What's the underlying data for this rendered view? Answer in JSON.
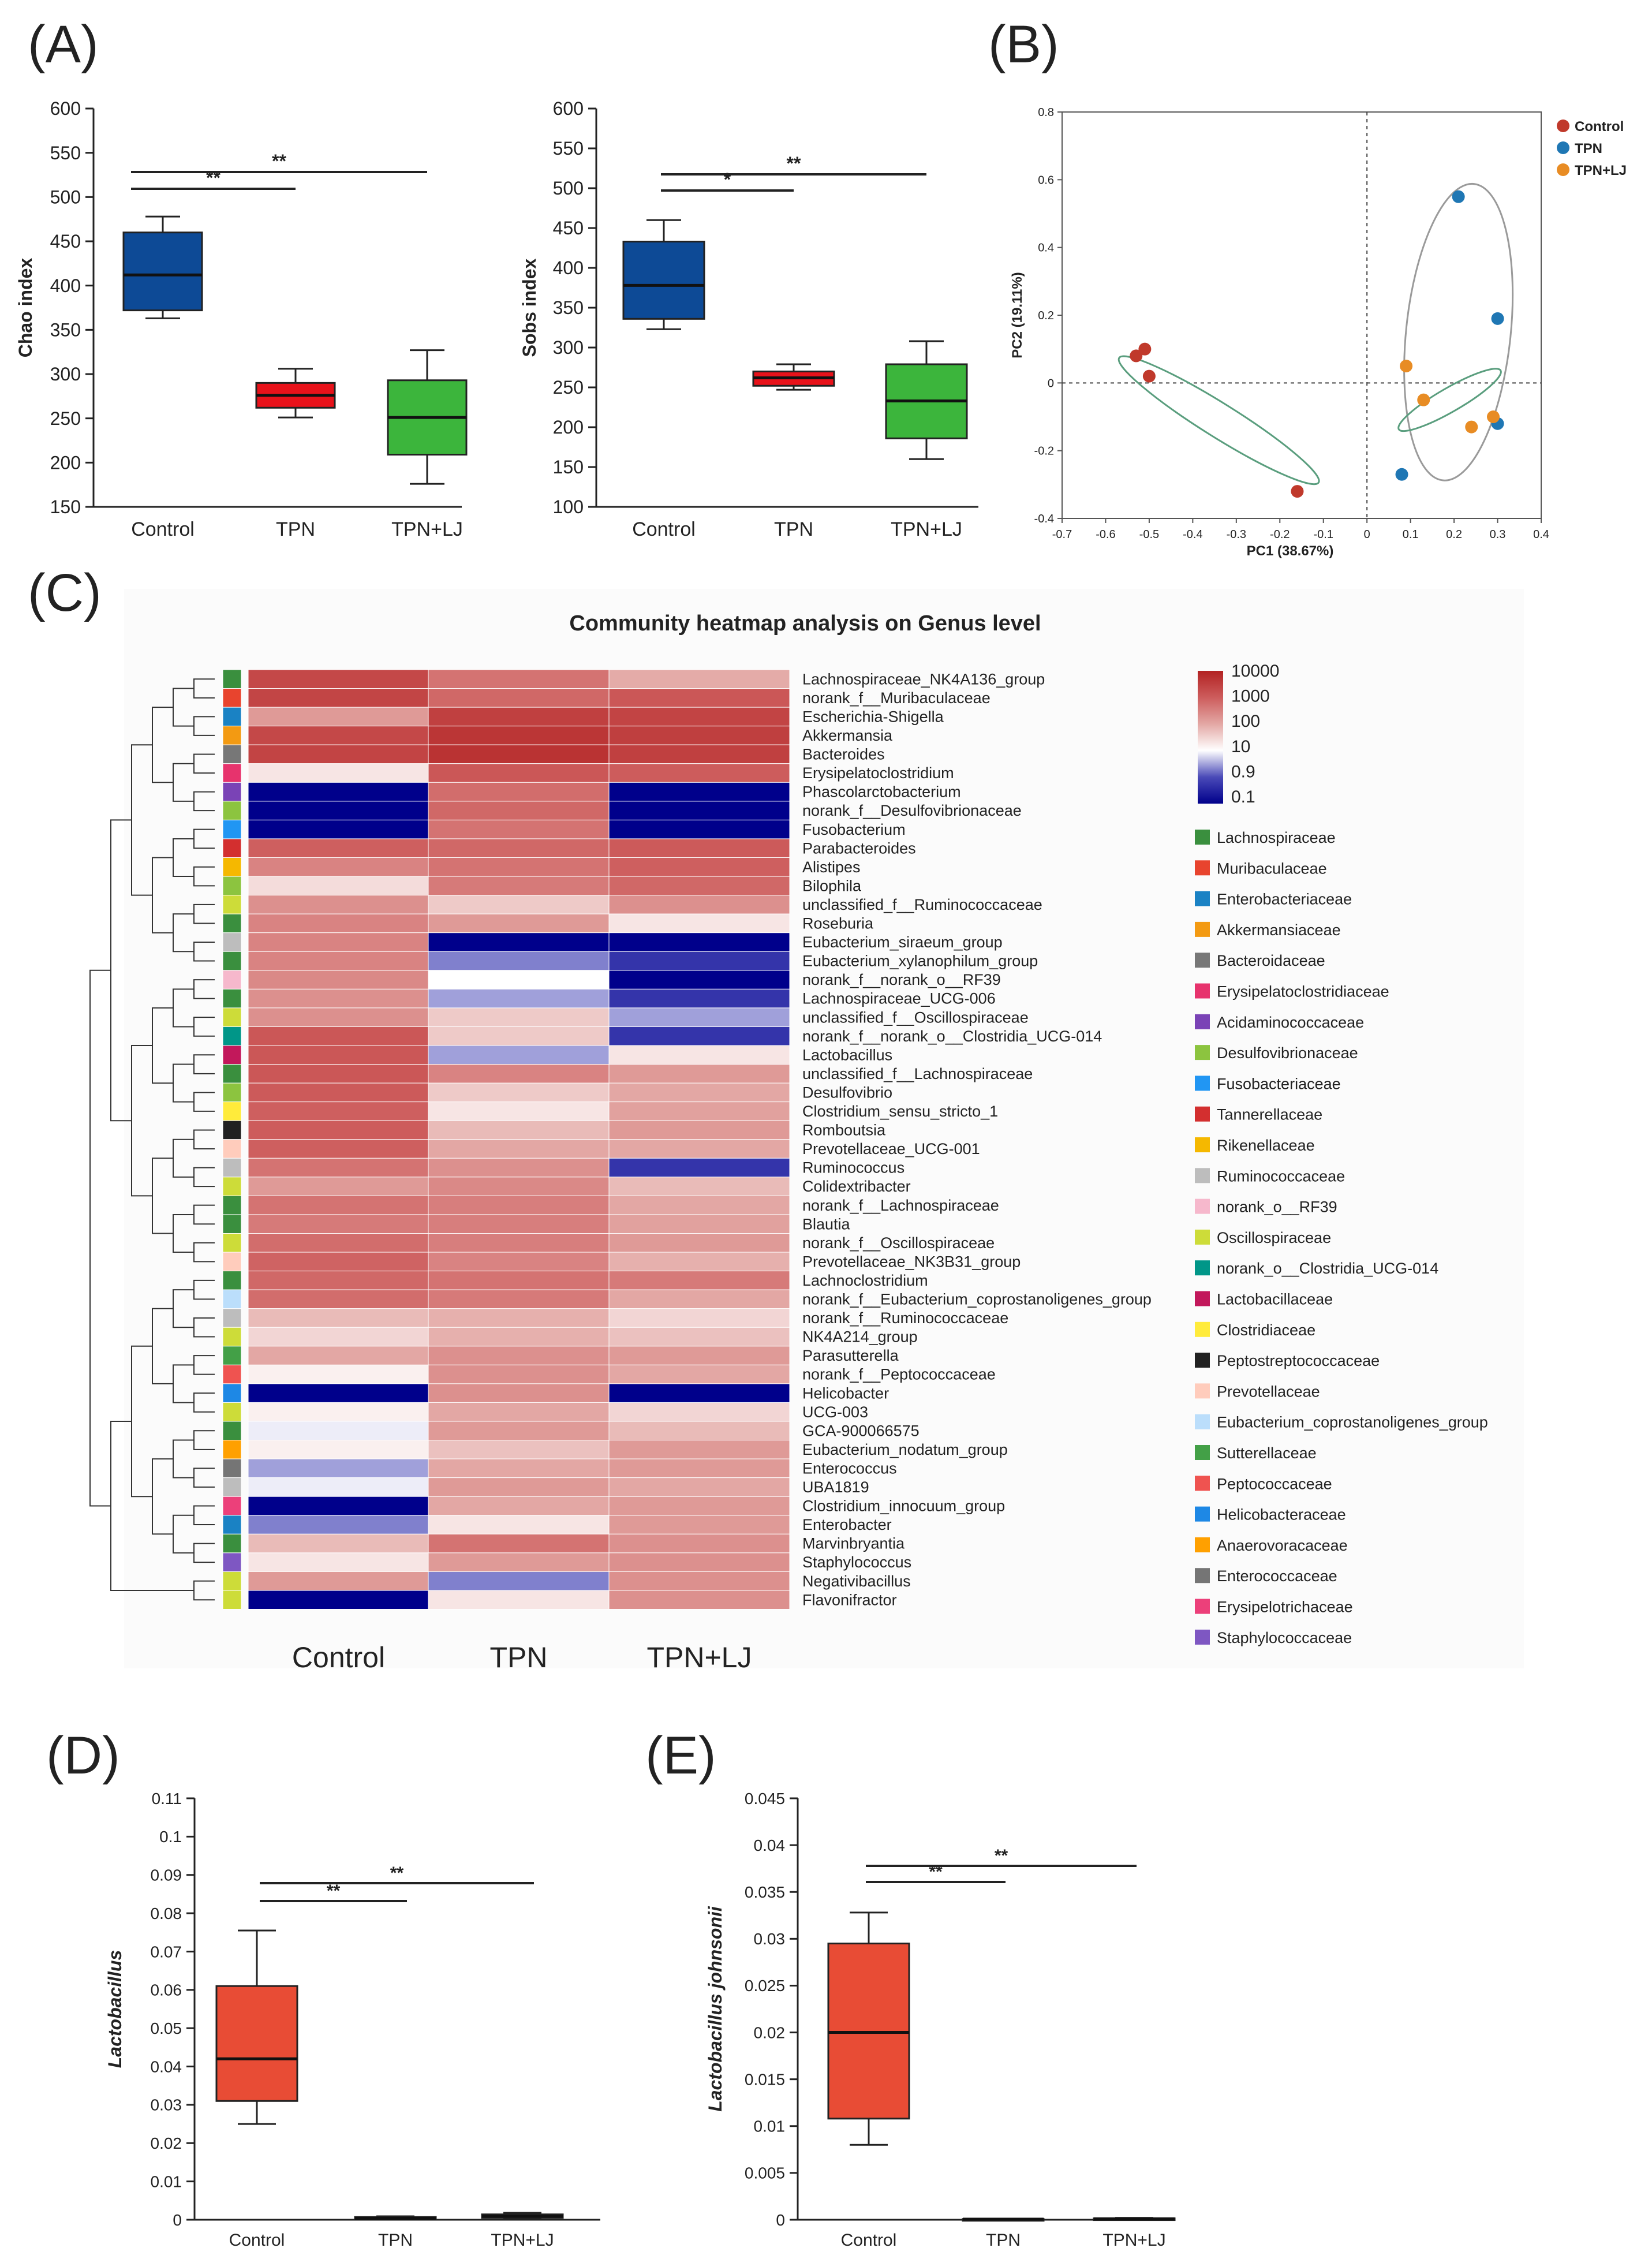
{
  "panel_labels": {
    "A": "(A)",
    "B": "(B)",
    "C": "(C)",
    "D": "(D)",
    "E": "(E)"
  },
  "chart_data": [
    {
      "id": "A1",
      "type": "box",
      "ylabel": "Chao index",
      "ylim": [
        150,
        600
      ],
      "yticks": [
        150,
        200,
        250,
        300,
        350,
        400,
        450,
        500,
        550,
        600
      ],
      "categories": [
        "Control",
        "TPN",
        "TPN+LJ"
      ],
      "boxes": [
        {
          "name": "Control",
          "min": 363,
          "q1": 372,
          "median": 412,
          "q3": 460,
          "max": 478,
          "color": "#0d4a96"
        },
        {
          "name": "TPN",
          "min": 251,
          "q1": 262,
          "median": 276,
          "q3": 290,
          "max": 306,
          "color": "#e8121a"
        },
        {
          "name": "TPN+LJ",
          "min": 176,
          "q1": 209,
          "median": 251,
          "q3": 293,
          "max": 327,
          "color": "#3cb53c"
        }
      ],
      "significance": [
        {
          "from": "Control",
          "to": "TPN",
          "label": "**"
        },
        {
          "from": "Control",
          "to": "TPN+LJ",
          "label": "**"
        }
      ]
    },
    {
      "id": "A2",
      "type": "box",
      "ylabel": "Sobs index",
      "ylim": [
        100,
        600
      ],
      "yticks": [
        100,
        150,
        200,
        250,
        300,
        350,
        400,
        450,
        500,
        550,
        600
      ],
      "categories": [
        "Control",
        "TPN",
        "TPN+LJ"
      ],
      "boxes": [
        {
          "name": "Control",
          "min": 323,
          "q1": 336,
          "median": 378,
          "q3": 433,
          "max": 460,
          "color": "#0d4a96"
        },
        {
          "name": "TPN",
          "min": 247,
          "q1": 252,
          "median": 262,
          "q3": 270,
          "max": 279,
          "color": "#e8121a"
        },
        {
          "name": "TPN+LJ",
          "min": 160,
          "q1": 186,
          "median": 233,
          "q3": 279,
          "max": 308,
          "color": "#3cb53c"
        }
      ],
      "significance": [
        {
          "from": "Control",
          "to": "TPN",
          "label": "*"
        },
        {
          "from": "Control",
          "to": "TPN+LJ",
          "label": "**"
        }
      ]
    },
    {
      "id": "B",
      "type": "scatter",
      "xlabel": "PC1 (38.67%)",
      "ylabel": "PC2 (19.11%)",
      "xlim": [
        -0.7,
        0.4
      ],
      "ylim": [
        -0.4,
        0.8
      ],
      "xticks": [
        -0.7,
        -0.6,
        -0.5,
        -0.4,
        -0.3,
        -0.2,
        -0.1,
        0,
        0.1,
        0.2,
        0.3,
        0.4
      ],
      "yticks": [
        -0.4,
        -0.2,
        0,
        0.2,
        0.4,
        0.6,
        0.8
      ],
      "legend": [
        "Control",
        "TPN",
        "TPN+LJ"
      ],
      "series": [
        {
          "name": "Control",
          "color": "#c0392b",
          "points": [
            [
              -0.51,
              0.1
            ],
            [
              -0.53,
              0.08
            ],
            [
              -0.5,
              0.02
            ],
            [
              -0.16,
              -0.32
            ]
          ]
        },
        {
          "name": "TPN",
          "color": "#1f77b4",
          "points": [
            [
              0.21,
              0.55
            ],
            [
              0.3,
              0.19
            ],
            [
              0.3,
              -0.12
            ],
            [
              0.08,
              -0.27
            ]
          ]
        },
        {
          "name": "TPN+LJ",
          "color": "#e88c24",
          "points": [
            [
              0.09,
              0.05
            ],
            [
              0.13,
              -0.05
            ],
            [
              0.24,
              -0.13
            ],
            [
              0.29,
              -0.1
            ]
          ]
        }
      ],
      "ellipses": [
        {
          "group": "Control",
          "color": "#5a9e7e",
          "cx": -0.34,
          "cy": -0.11,
          "rx": 0.27,
          "ry": 0.05,
          "angle": 32
        },
        {
          "group": "TPN",
          "color": "#9a9a9a",
          "cx": 0.21,
          "cy": 0.15,
          "rx": 0.12,
          "ry": 0.44,
          "angle": 6
        },
        {
          "group": "TPN+LJ",
          "color": "#5a9e7e",
          "cx": 0.19,
          "cy": -0.05,
          "rx": 0.135,
          "ry": 0.035,
          "angle": 150
        }
      ]
    },
    {
      "id": "C",
      "type": "heatmap",
      "title": "Community heatmap analysis on Genus level",
      "columns": [
        "Control",
        "TPN",
        "TPN+LJ"
      ],
      "colorbar_labels": [
        "10000",
        "1000",
        "100",
        "10",
        "0.9",
        "0.1"
      ],
      "rows": [
        {
          "genus": "Lachnospiraceae_NK4A136_group",
          "family": "Lachnospiraceae",
          "values": [
            2200,
            500,
            90
          ]
        },
        {
          "genus": "norank_f__Muribaculaceae",
          "family": "Muribaculaceae",
          "values": [
            2500,
            700,
            1200
          ]
        },
        {
          "genus": "Escherichia-Shigella",
          "family": "Enterobacteriaceae",
          "values": [
            150,
            3000,
            2600
          ]
        },
        {
          "genus": "Akkermansia",
          "family": "Akkermansiaceae",
          "values": [
            2200,
            4500,
            3200
          ]
        },
        {
          "genus": "Bacteroides",
          "family": "Bacteroidaceae",
          "values": [
            2600,
            5000,
            3000
          ]
        },
        {
          "genus": "Erysipelatoclostridium",
          "family": "Erysipelatoclostridiaceae",
          "values": [
            20,
            1200,
            1000
          ]
        },
        {
          "genus": "Phascolarctobacterium",
          "family": "Acidaminococcaceae",
          "values": [
            0.1,
            600,
            0.1
          ]
        },
        {
          "genus": "norank_f__Desulfovibrionaceae",
          "family": "Desulfovibrionaceae",
          "values": [
            0.1,
            700,
            0.1
          ]
        },
        {
          "genus": "Fusobacterium",
          "family": "Fusobacteriaceae",
          "values": [
            0.1,
            500,
            0.1
          ]
        },
        {
          "genus": "Parabacteroides",
          "family": "Tannerellaceae",
          "values": [
            900,
            700,
            1100
          ]
        },
        {
          "genus": "Alistipes",
          "family": "Rikenellaceae",
          "values": [
            300,
            500,
            900
          ]
        },
        {
          "genus": "Bilophila",
          "family": "Desulfovibrionaceae",
          "values": [
            25,
            400,
            700
          ]
        },
        {
          "genus": "unclassified_f__Ruminococcaceae",
          "family": "Oscillospiraceae",
          "values": [
            200,
            40,
            200
          ]
        },
        {
          "genus": "Roseburia",
          "family": "Lachnospiraceae",
          "values": [
            300,
            150,
            20
          ]
        },
        {
          "genus": "Eubacterium_siraeum_group",
          "family": "Ruminococcaceae",
          "values": [
            300,
            0.1,
            0.1
          ]
        },
        {
          "genus": "Eubacterium_xylanophilum_group",
          "family": "Lachnospiraceae",
          "values": [
            300,
            2,
            0.5
          ]
        },
        {
          "genus": "norank_f__norank_o__RF39",
          "family": "norank_o__RF39",
          "values": [
            250,
            10,
            0.1
          ]
        },
        {
          "genus": "Lachnospiraceae_UCG-006",
          "family": "Lachnospiraceae",
          "values": [
            200,
            3,
            0.5
          ]
        },
        {
          "genus": "unclassified_f__Oscillospiraceae",
          "family": "Oscillospiraceae",
          "values": [
            200,
            40,
            3
          ]
        },
        {
          "genus": "norank_f__norank_o__Clostridia_UCG-014",
          "family": "norank_o__Clostridia_UCG-014",
          "values": [
            1200,
            40,
            0.5
          ]
        },
        {
          "genus": "Lactobacillus",
          "family": "Lactobacillaceae",
          "values": [
            1200,
            3,
            20
          ]
        },
        {
          "genus": "unclassified_f__Lachnospiraceae",
          "family": "Lachnospiraceae",
          "values": [
            1200,
            300,
            150
          ]
        },
        {
          "genus": "Desulfovibrio",
          "family": "Desulfovibrionaceae",
          "values": [
            1100,
            40,
            100
          ]
        },
        {
          "genus": "Clostridium_sensu_stricto_1",
          "family": "Clostridiaceae",
          "values": [
            900,
            20,
            120
          ]
        },
        {
          "genus": "Romboutsia",
          "family": "Peptostreptococcaceae",
          "values": [
            1000,
            60,
            150
          ]
        },
        {
          "genus": "Prevotellaceae_UCG-001",
          "family": "Prevotellaceae",
          "values": [
            900,
            100,
            100
          ]
        },
        {
          "genus": "Ruminococcus",
          "family": "Ruminococcaceae",
          "values": [
            500,
            200,
            0.5
          ]
        },
        {
          "genus": "Colidextribacter",
          "family": "Oscillospiraceae",
          "values": [
            150,
            250,
            60
          ]
        },
        {
          "genus": "norank_f__Lachnospiraceae",
          "family": "Lachnospiraceae",
          "values": [
            500,
            350,
            100
          ]
        },
        {
          "genus": "Blautia",
          "family": "Lachnospiraceae",
          "values": [
            400,
            350,
            120
          ]
        },
        {
          "genus": "norank_f__Oscillospiraceae",
          "family": "Oscillospiraceae",
          "values": [
            600,
            350,
            150
          ]
        },
        {
          "genus": "Prevotellaceae_NK3B31_group",
          "family": "Prevotellaceae",
          "values": [
            800,
            300,
            80
          ]
        },
        {
          "genus": "Lachnoclostridium",
          "family": "Lachnospiraceae",
          "values": [
            700,
            500,
            400
          ]
        },
        {
          "genus": "norank_f__Eubacterium_coprostanoligenes_group",
          "family": "Eubacterium_coprostanoligenes_group",
          "values": [
            600,
            400,
            100
          ]
        },
        {
          "genus": "norank_f__Ruminococcaceae",
          "family": "Ruminococcaceae",
          "values": [
            60,
            80,
            30
          ]
        },
        {
          "genus": "NK4A214_group",
          "family": "Oscillospiraceae",
          "values": [
            30,
            80,
            50
          ]
        },
        {
          "genus": "Parasutterella",
          "family": "Sutterellaceae",
          "values": [
            100,
            200,
            150
          ]
        },
        {
          "genus": "norank_f__Peptococcaceae",
          "family": "Peptococcaceae",
          "values": [
            15,
            200,
            100
          ]
        },
        {
          "genus": "Helicobacter",
          "family": "Helicobacteraceae",
          "values": [
            0.1,
            200,
            0.1
          ]
        },
        {
          "genus": "UCG-003",
          "family": "Oscillospiraceae",
          "values": [
            15,
            100,
            30
          ]
        },
        {
          "genus": "GCA-900066575",
          "family": "Lachnospiraceae",
          "values": [
            8,
            150,
            60
          ]
        },
        {
          "genus": "Eubacterium_nodatum_group",
          "family": "Anaerovoracaceae",
          "values": [
            15,
            50,
            150
          ]
        },
        {
          "genus": "Enterococcus",
          "family": "Enterococcaceae",
          "values": [
            3,
            100,
            150
          ]
        },
        {
          "genus": "UBA1819",
          "family": "Ruminococcaceae",
          "values": [
            8,
            150,
            100
          ]
        },
        {
          "genus": "Clostridium_innocuum_group",
          "family": "Erysipelotrichaceae",
          "values": [
            0.1,
            100,
            150
          ]
        },
        {
          "genus": "Enterobacter",
          "family": "Enterobacteriaceae",
          "values": [
            2,
            20,
            150
          ]
        },
        {
          "genus": "Marvinbryantia",
          "family": "Lachnospiraceae",
          "values": [
            60,
            500,
            200
          ]
        },
        {
          "genus": "Staphylococcus",
          "family": "Staphylococcaceae",
          "values": [
            20,
            150,
            200
          ]
        },
        {
          "genus": "Negativibacillus",
          "family": "Oscillospiraceae",
          "values": [
            150,
            2,
            200
          ]
        },
        {
          "genus": "Flavonifractor",
          "family": "Oscillospiraceae",
          "values": [
            0.1,
            20,
            200
          ]
        }
      ],
      "families": [
        {
          "name": "Lachnospiraceae",
          "color": "#3a8f3e"
        },
        {
          "name": "Muribaculaceae",
          "color": "#e8442e"
        },
        {
          "name": "Enterobacteriaceae",
          "color": "#1a82c4"
        },
        {
          "name": "Akkermansiaceae",
          "color": "#f39a12"
        },
        {
          "name": "Bacteroidaceae",
          "color": "#777777"
        },
        {
          "name": "Erysipelatoclostridiaceae",
          "color": "#e7336d"
        },
        {
          "name": "Acidaminococcaceae",
          "color": "#7a43b6"
        },
        {
          "name": "Desulfovibrionaceae",
          "color": "#8cc43f"
        },
        {
          "name": "Fusobacteriaceae",
          "color": "#2196f3"
        },
        {
          "name": "Tannerellaceae",
          "color": "#d32f2f"
        },
        {
          "name": "Rikenellaceae",
          "color": "#f5b800"
        },
        {
          "name": "Ruminococcaceae",
          "color": "#bdbdbd"
        },
        {
          "name": "norank_o__RF39",
          "color": "#f6b8cc"
        },
        {
          "name": "Oscillospiraceae",
          "color": "#cddc39"
        },
        {
          "name": "norank_o__Clostridia_UCG-014",
          "color": "#009688"
        },
        {
          "name": "Lactobacillaceae",
          "color": "#c2185b"
        },
        {
          "name": "Clostridiaceae",
          "color": "#ffeb3b"
        },
        {
          "name": "Peptostreptococcaceae",
          "color": "#212121"
        },
        {
          "name": "Prevotellaceae",
          "color": "#ffccbc"
        },
        {
          "name": "Eubacterium_coprostanoligenes_group",
          "color": "#bbdefb"
        },
        {
          "name": "Sutterellaceae",
          "color": "#43a047"
        },
        {
          "name": "Peptococcaceae",
          "color": "#ef5350"
        },
        {
          "name": "Helicobacteraceae",
          "color": "#1e88e5"
        },
        {
          "name": "Anaerovoracaceae",
          "color": "#ffa000"
        },
        {
          "name": "Enterococcaceae",
          "color": "#757575"
        },
        {
          "name": "Erysipelotrichaceae",
          "color": "#ec407a"
        },
        {
          "name": "Staphylococcaceae",
          "color": "#7e57c2"
        }
      ]
    },
    {
      "id": "D",
      "type": "box",
      "ylabel": "Lactobacillus",
      "ylim": [
        0,
        0.11
      ],
      "yticks": [
        0,
        0.01,
        0.02,
        0.03,
        0.04,
        0.05,
        0.06,
        0.07,
        0.08,
        0.09,
        0.1,
        0.11
      ],
      "categories": [
        "Control",
        "TPN",
        "TPN+LJ"
      ],
      "boxes": [
        {
          "name": "Control",
          "min": 0.025,
          "q1": 0.031,
          "median": 0.042,
          "q3": 0.061,
          "max": 0.0755,
          "color": "#e84c35"
        },
        {
          "name": "TPN",
          "min": 0.0001,
          "q1": 0.0002,
          "median": 0.0004,
          "q3": 0.0007,
          "max": 0.0009,
          "color": "#3aa655"
        },
        {
          "name": "TPN+LJ",
          "min": 0.0002,
          "q1": 0.0005,
          "median": 0.0009,
          "q3": 0.0014,
          "max": 0.0018,
          "color": "#3aa655"
        }
      ],
      "significance": [
        {
          "from": "Control",
          "to": "TPN",
          "label": "**"
        },
        {
          "from": "Control",
          "to": "TPN+LJ",
          "label": "**"
        }
      ]
    },
    {
      "id": "E",
      "type": "box",
      "ylabel": "Lactobacillus johnsonii",
      "ylim": [
        0,
        0.045
      ],
      "yticks": [
        0,
        0.005,
        0.01,
        0.015,
        0.02,
        0.025,
        0.03,
        0.035,
        0.04,
        0.045
      ],
      "categories": [
        "Control",
        "TPN",
        "TPN+LJ"
      ],
      "boxes": [
        {
          "name": "Control",
          "min": 0.008,
          "q1": 0.0108,
          "median": 0.02,
          "q3": 0.0295,
          "max": 0.0328,
          "color": "#e84c35"
        },
        {
          "name": "TPN",
          "min": 2e-05,
          "q1": 4e-05,
          "median": 6e-05,
          "q3": 8e-05,
          "max": 0.0001,
          "color": "#3aa655"
        },
        {
          "name": "TPN+LJ",
          "min": 3e-05,
          "q1": 6e-05,
          "median": 0.0001,
          "q3": 0.00015,
          "max": 0.0002,
          "color": "#3aa655"
        }
      ],
      "significance": [
        {
          "from": "Control",
          "to": "TPN",
          "label": "**"
        },
        {
          "from": "Control",
          "to": "TPN+LJ",
          "label": "**"
        }
      ]
    }
  ]
}
